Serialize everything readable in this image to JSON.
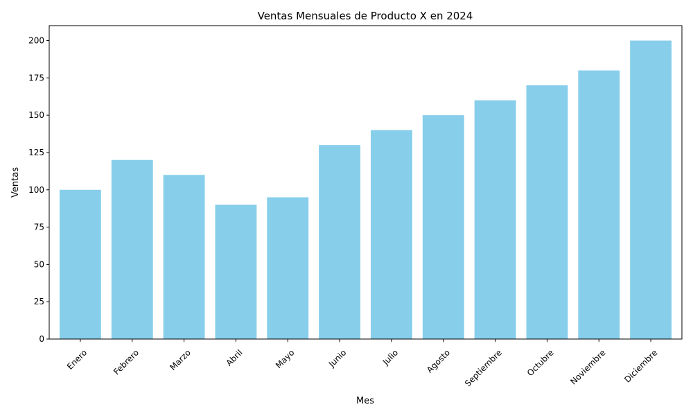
{
  "chart_data": {
    "type": "bar",
    "title": "Ventas Mensuales de Producto X en 2024",
    "xlabel": "Mes",
    "ylabel": "Ventas",
    "categories": [
      "Enero",
      "Febrero",
      "Marzo",
      "Abril",
      "Mayo",
      "Junio",
      "Julio",
      "Agosto",
      "Septiembre",
      "Octubre",
      "Noviembre",
      "Diciembre"
    ],
    "values": [
      100,
      120,
      110,
      90,
      95,
      130,
      140,
      150,
      160,
      170,
      180,
      200
    ],
    "ylim": [
      0,
      210
    ],
    "yticks": [
      0,
      25,
      50,
      75,
      100,
      125,
      150,
      175,
      200
    ],
    "bar_color": "#87CEEB",
    "grid": false,
    "legend": "none"
  }
}
